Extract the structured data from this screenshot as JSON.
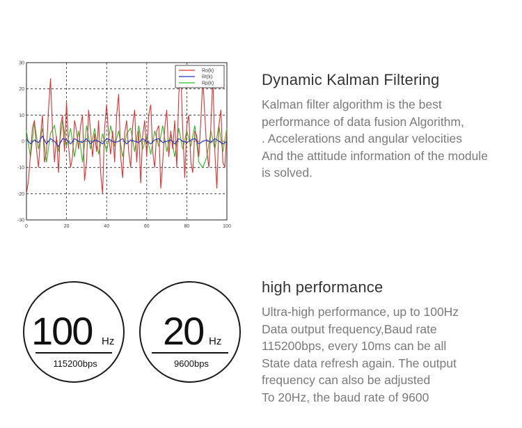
{
  "chart_data": {
    "type": "line",
    "xlim": [
      0,
      100
    ],
    "ylim": [
      -30,
      30
    ],
    "xticks": [
      "0",
      "20",
      "40",
      "60",
      "80",
      "100"
    ],
    "yticks": [
      "30",
      "20",
      "10",
      "0",
      "-10",
      "-20",
      "-30"
    ],
    "grid": true,
    "legend_position": "top-right",
    "series": [
      {
        "name": "Ro(k)",
        "color": "#e03030",
        "x": [
          0,
          1,
          2,
          3,
          4,
          5,
          6,
          7,
          8,
          9,
          10,
          11,
          12,
          13,
          14,
          15,
          16,
          17,
          18,
          19,
          20,
          21,
          22,
          23,
          24,
          25,
          26,
          27,
          28,
          29,
          30,
          31,
          32,
          33,
          34,
          35,
          36,
          37,
          38,
          39,
          40,
          41,
          42,
          43,
          44,
          45,
          46,
          47,
          48,
          49,
          50,
          51,
          52,
          53,
          54,
          55,
          56,
          57,
          58,
          59,
          60,
          61,
          62,
          63,
          64,
          65,
          66,
          67,
          68,
          69,
          70,
          71,
          72,
          73,
          74,
          75,
          76,
          77,
          78,
          79,
          80,
          81,
          82,
          83,
          84,
          85,
          86,
          87,
          88,
          89,
          90,
          91,
          92,
          93,
          94,
          95,
          96,
          97,
          98,
          99,
          100
        ],
        "y": [
          -20,
          -15,
          -5,
          5,
          8,
          -3,
          -10,
          2,
          10,
          -8,
          -4,
          12,
          24,
          5,
          -8,
          2,
          -12,
          6,
          10,
          -4,
          15,
          -2,
          -10,
          -6,
          8,
          4,
          -3,
          6,
          10,
          -15,
          -8,
          12,
          4,
          -6,
          3,
          -4,
          8,
          -12,
          -20,
          5,
          14,
          2,
          -5,
          4,
          -8,
          10,
          18,
          -6,
          -14,
          3,
          8,
          -4,
          -10,
          6,
          12,
          -8,
          4,
          -16,
          2,
          8,
          -6,
          10,
          14,
          -4,
          -10,
          4,
          6,
          -18,
          -8,
          5,
          12,
          -6,
          4,
          -3,
          8,
          -10,
          18,
          26,
          4,
          -14,
          6,
          10,
          -8,
          -12,
          4,
          2,
          -6,
          8,
          24,
          10,
          -4,
          -10,
          6,
          25,
          -4,
          -18,
          6,
          12,
          -8,
          -10,
          4
        ]
      },
      {
        "name": "Rt(k)",
        "color": "#2030c8",
        "x": [
          0,
          2,
          4,
          6,
          8,
          10,
          12,
          14,
          16,
          18,
          20,
          22,
          24,
          26,
          28,
          30,
          32,
          34,
          36,
          38,
          40,
          42,
          44,
          46,
          48,
          50,
          52,
          54,
          56,
          58,
          60,
          62,
          64,
          66,
          68,
          70,
          72,
          74,
          76,
          78,
          80,
          82,
          84,
          86,
          88,
          90,
          92,
          94,
          96,
          98,
          100
        ],
        "y": [
          1,
          -1,
          0.5,
          -0.5,
          2,
          -1,
          1,
          0,
          -2,
          1,
          0.5,
          -1,
          1,
          0,
          -0.5,
          1,
          -1,
          0.5,
          0,
          -1,
          1,
          0.5,
          -0.5,
          0,
          1,
          -1,
          0.5,
          0,
          -0.5,
          1,
          0,
          -1,
          0.5,
          1,
          -0.5,
          0,
          0.5,
          -1,
          1,
          0,
          -0.5,
          0.5,
          1,
          -1,
          0,
          0.5,
          -0.5,
          1,
          0,
          -1,
          0
        ]
      },
      {
        "name": "Rp(k)",
        "color": "#20c020",
        "x": [
          0,
          2,
          4,
          6,
          8,
          10,
          12,
          14,
          16,
          18,
          20,
          22,
          24,
          26,
          28,
          30,
          32,
          34,
          36,
          38,
          40,
          42,
          44,
          46,
          48,
          50,
          52,
          54,
          56,
          58,
          60,
          62,
          64,
          66,
          68,
          70,
          72,
          74,
          76,
          78,
          80,
          82,
          84,
          86,
          88,
          90,
          92,
          94,
          96,
          98,
          100
        ],
        "y": [
          4,
          -6,
          7,
          -3,
          5,
          -8,
          3,
          6,
          -4,
          8,
          -2,
          5,
          -6,
          4,
          -8,
          6,
          -3,
          5,
          -5,
          3,
          -4,
          6,
          -2,
          4,
          -6,
          3,
          5,
          -4,
          6,
          -3,
          2,
          -5,
          4,
          -2,
          6,
          -4,
          3,
          -6,
          5,
          -3,
          4,
          -2,
          6,
          -8,
          -10,
          -6,
          4,
          -3,
          6,
          -4,
          5
        ]
      }
    ]
  },
  "section_1": {
    "title": "Dynamic Kalman Filtering",
    "lines": [
      "Kalman filter algorithm is the best",
      "performance of data fusion Algorithm,",
      ".  Accelerations and angular velocities",
      "And the attitude information of the module",
      "is solved."
    ]
  },
  "section_2": {
    "title": "high performance",
    "lines": [
      "Ultra-high performance, up to 100Hz",
      "Data output frequency,Baud rate",
      "115200bps, every 10ms can be all",
      "State data refresh again. The output",
      "frequency can also be adjusted",
      "To 20Hz, the baud rate of 9600"
    ]
  },
  "badges": [
    {
      "value": "100",
      "unit": "Hz",
      "sub": "115200bps"
    },
    {
      "value": "20",
      "unit": "Hz",
      "sub": "9600bps"
    }
  ]
}
